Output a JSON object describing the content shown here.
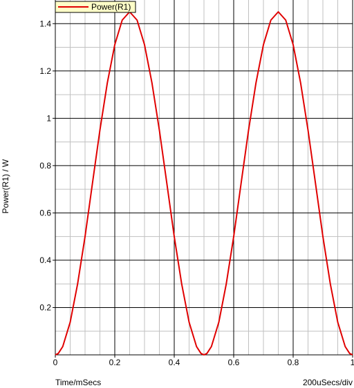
{
  "chart_data": {
    "type": "line",
    "xlabel": "Time/mSecs",
    "ylabel": "Power(R1) / W",
    "scale_label": "200uSecs/div",
    "xlim": [
      0,
      1
    ],
    "ylim": [
      0,
      1.5
    ],
    "x_ticks": [
      "0",
      "0.2",
      "0.4",
      "0.6",
      "0.8",
      "1"
    ],
    "y_ticks": [
      "0.2",
      "0.4",
      "0.6",
      "0.8",
      "1",
      "1.2",
      "1.4"
    ],
    "grid": true,
    "legend_position": "top-left",
    "series": [
      {
        "name": "Power(R1)",
        "color": "#e00000",
        "x": [
          0,
          0.01,
          0.025,
          0.05,
          0.075,
          0.1,
          0.125,
          0.15,
          0.175,
          0.2,
          0.225,
          0.25,
          0.275,
          0.3,
          0.325,
          0.35,
          0.375,
          0.4,
          0.425,
          0.45,
          0.475,
          0.49,
          0.5,
          0.51,
          0.525,
          0.55,
          0.575,
          0.6,
          0.625,
          0.65,
          0.675,
          0.7,
          0.725,
          0.75,
          0.775,
          0.8,
          0.825,
          0.85,
          0.875,
          0.9,
          0.925,
          0.95,
          0.975,
          0.99,
          1.0
        ],
        "y": [
          0,
          0.006,
          0.035,
          0.138,
          0.3,
          0.5,
          0.726,
          0.95,
          1.15,
          1.311,
          1.415,
          1.45,
          1.415,
          1.311,
          1.15,
          0.95,
          0.726,
          0.5,
          0.3,
          0.138,
          0.035,
          0.006,
          0,
          0.006,
          0.035,
          0.138,
          0.3,
          0.5,
          0.726,
          0.95,
          1.15,
          1.311,
          1.415,
          1.45,
          1.415,
          1.311,
          1.15,
          0.95,
          0.726,
          0.5,
          0.3,
          0.138,
          0.035,
          0.006,
          0
        ]
      }
    ]
  }
}
